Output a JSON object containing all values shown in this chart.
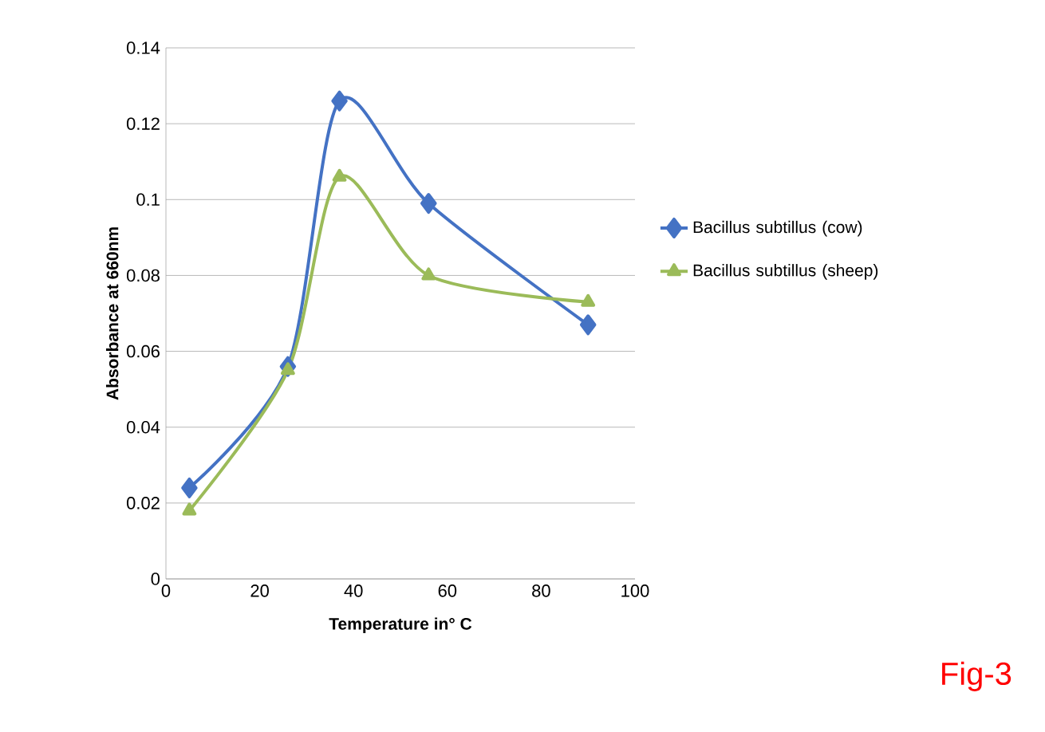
{
  "chart_data": {
    "type": "line",
    "xlabel": "Temperature in° C",
    "ylabel": "Absorbance at 660nm",
    "xlim": [
      0,
      100
    ],
    "xticks": [
      0,
      20,
      40,
      60,
      80,
      100
    ],
    "ylim": [
      0,
      0.14
    ],
    "yticks": [
      0,
      0.02,
      0.04,
      0.06,
      0.08,
      0.1,
      0.12,
      0.14
    ],
    "grid": "y",
    "legend": "right",
    "series": [
      {
        "name": "Bacillus subtillus  (cow)",
        "color": "#4472c4",
        "marker": "diamond",
        "x": [
          5,
          26,
          37,
          56,
          90
        ],
        "values": [
          0.024,
          0.056,
          0.126,
          0.099,
          0.067
        ]
      },
      {
        "name": "Bacillus subtillus (sheep)",
        "color": "#9bbb59",
        "marker": "triangle",
        "x": [
          5,
          26,
          37,
          56,
          90
        ],
        "values": [
          0.018,
          0.055,
          0.106,
          0.08,
          0.073
        ]
      }
    ],
    "annotations": [
      "Fig-3"
    ]
  }
}
